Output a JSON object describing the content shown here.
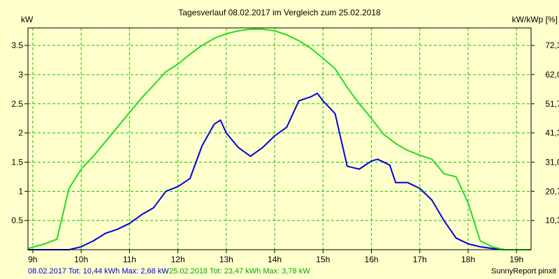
{
  "chart_data": {
    "type": "line",
    "title": "Tagesverlauf 08.02.2017 im Vergleich zum 25.02.2018",
    "ylabel_left": "kW",
    "ylabel_right": "kW/kWp [%]",
    "x_ticks": [
      "9h",
      "10h",
      "11h",
      "12h",
      "13h",
      "14h",
      "15h",
      "16h",
      "17h",
      "18h",
      "19h"
    ],
    "y_ticks_left": [
      "0.5",
      "1",
      "1.5",
      "2",
      "2.5",
      "3",
      "3.5"
    ],
    "y_ticks_right": [
      "10,3",
      "20,7",
      "31,0",
      "41,3",
      "51,7",
      "62,0",
      "72,3"
    ],
    "xlim": [
      8.9,
      19.3
    ],
    "ylim": [
      0,
      3.8
    ],
    "grid": true,
    "series": [
      {
        "name": "08.02.2017",
        "color": "#0000dd",
        "x": [
          8.9,
          9.25,
          9.75,
          10.0,
          10.25,
          10.5,
          10.75,
          11.0,
          11.25,
          11.5,
          11.75,
          12.0,
          12.25,
          12.5,
          12.75,
          12.88,
          13.0,
          13.25,
          13.5,
          13.75,
          14.0,
          14.25,
          14.5,
          14.75,
          14.88,
          15.0,
          15.25,
          15.5,
          15.75,
          16.0,
          16.13,
          16.38,
          16.5,
          16.75,
          17.0,
          17.25,
          17.5,
          17.75,
          18.0,
          18.25,
          18.5,
          18.75,
          19.0,
          19.3
        ],
        "y": [
          0.0,
          0.0,
          0.0,
          0.05,
          0.15,
          0.28,
          0.35,
          0.45,
          0.6,
          0.72,
          1.0,
          1.08,
          1.22,
          1.78,
          2.15,
          2.22,
          2.0,
          1.75,
          1.6,
          1.75,
          1.95,
          2.1,
          2.55,
          2.62,
          2.68,
          2.55,
          2.33,
          1.43,
          1.38,
          1.52,
          1.55,
          1.45,
          1.15,
          1.15,
          1.05,
          0.85,
          0.5,
          0.2,
          0.1,
          0.05,
          0.02,
          0.0,
          0.0,
          0.0
        ]
      },
      {
        "name": "25.02.2018",
        "color": "#22dd22",
        "x": [
          8.9,
          9.25,
          9.5,
          9.75,
          10.0,
          10.25,
          10.5,
          10.75,
          11.0,
          11.25,
          11.5,
          11.75,
          12.0,
          12.25,
          12.5,
          12.75,
          13.0,
          13.25,
          13.5,
          13.75,
          14.0,
          14.25,
          14.5,
          14.75,
          15.0,
          15.25,
          15.5,
          15.75,
          16.0,
          16.25,
          16.5,
          16.75,
          17.0,
          17.25,
          17.5,
          17.75,
          18.0,
          18.25,
          18.5,
          18.75,
          19.0,
          19.3
        ],
        "y": [
          0.02,
          0.1,
          0.18,
          1.05,
          1.38,
          1.6,
          1.85,
          2.1,
          2.35,
          2.6,
          2.82,
          3.05,
          3.18,
          3.35,
          3.5,
          3.62,
          3.7,
          3.75,
          3.78,
          3.78,
          3.75,
          3.68,
          3.58,
          3.45,
          3.28,
          3.1,
          2.78,
          2.5,
          2.25,
          1.98,
          1.82,
          1.7,
          1.62,
          1.55,
          1.3,
          1.25,
          0.8,
          0.15,
          0.05,
          0.0,
          0.0,
          0.0
        ]
      }
    ]
  },
  "footer": {
    "series1_summary": "08.02.2017 Tot: 10,44 kWh Max: 2,68 kW",
    "series2_summary": "25.02.2018 Tot: 23,47 kWh Max: 3,78 kW",
    "credit": "SunnyReport pinxit"
  },
  "colors": {
    "background": "#ffffcc",
    "grid": "#00cc00",
    "axis": "#000000"
  }
}
